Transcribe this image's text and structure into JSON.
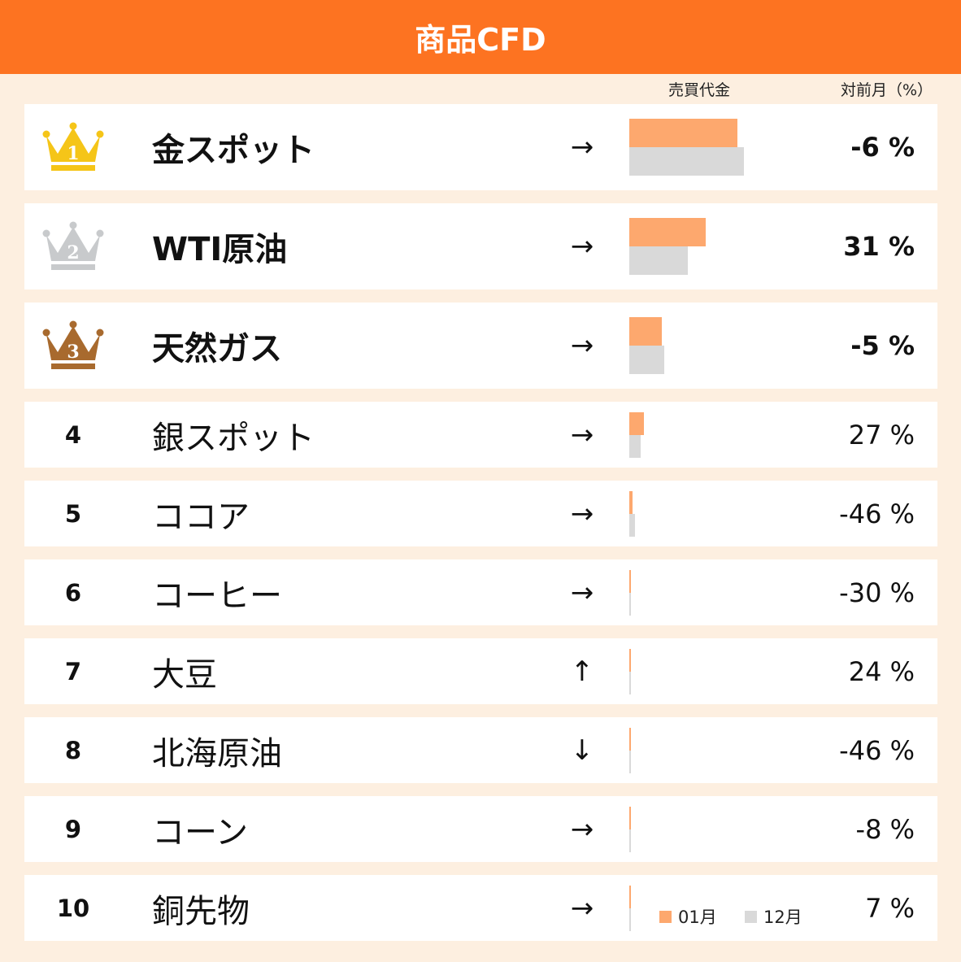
{
  "title": "商品CFD",
  "columns": {
    "volume": "売買代金",
    "change": "対前月（%）"
  },
  "legend": {
    "current": "01月",
    "previous": "12月"
  },
  "colors": {
    "header": "#fd7321",
    "current": "#fda86e",
    "previous": "#d9d9d9",
    "gold": "#f5c518",
    "silver": "#c8cacc",
    "bronze": "#a86a2e"
  },
  "rows": [
    {
      "rank": "1",
      "crown": "gold",
      "name": "金スポット",
      "trend": "→",
      "cur": 100,
      "prev": 106,
      "change": "-6 %"
    },
    {
      "rank": "2",
      "crown": "silver",
      "name": "WTI原油",
      "trend": "→",
      "cur": 71,
      "prev": 54,
      "change": "31 %"
    },
    {
      "rank": "3",
      "crown": "bronze",
      "name": "天然ガス",
      "trend": "→",
      "cur": 30,
      "prev": 32,
      "change": "-5 %"
    },
    {
      "rank": "4",
      "name": "銀スポット",
      "trend": "→",
      "cur": 13.5,
      "prev": 10.6,
      "change": "27 %"
    },
    {
      "rank": "5",
      "name": "ココア",
      "trend": "→",
      "cur": 3.0,
      "prev": 5.5,
      "change": "-46 %"
    },
    {
      "rank": "6",
      "name": "コーヒー",
      "trend": "→",
      "cur": 1.2,
      "prev": 1.7,
      "change": "-30 %"
    },
    {
      "rank": "7",
      "name": "大豆",
      "trend": "↑",
      "cur": 1.0,
      "prev": 0.8,
      "change": "24 %"
    },
    {
      "rank": "8",
      "name": "北海原油",
      "trend": "↓",
      "cur": 0.8,
      "prev": 1.5,
      "change": "-46 %"
    },
    {
      "rank": "9",
      "name": "コーン",
      "trend": "→",
      "cur": 0.7,
      "prev": 0.8,
      "change": "-8 %"
    },
    {
      "rank": "10",
      "name": "銅先物",
      "trend": "→",
      "cur": 0.5,
      "prev": 0.5,
      "change": "7 %"
    }
  ],
  "chart_data": {
    "type": "bar",
    "title": "商品CFD",
    "categories": [
      "金スポット",
      "WTI原油",
      "天然ガス",
      "銀スポット",
      "ココア",
      "コーヒー",
      "大豆",
      "北海原油",
      "コーン",
      "銅先物"
    ],
    "series": [
      {
        "name": "01月",
        "values": [
          100,
          71,
          30,
          13.5,
          3.0,
          1.2,
          1.0,
          0.8,
          0.7,
          0.5
        ]
      },
      {
        "name": "12月",
        "values": [
          106,
          54,
          32,
          10.6,
          5.5,
          1.7,
          0.8,
          1.5,
          0.8,
          0.5
        ]
      }
    ],
    "change_pct": [
      -6,
      31,
      -5,
      27,
      -46,
      -30,
      24,
      -46,
      -8,
      7
    ],
    "legend": "bottom"
  }
}
